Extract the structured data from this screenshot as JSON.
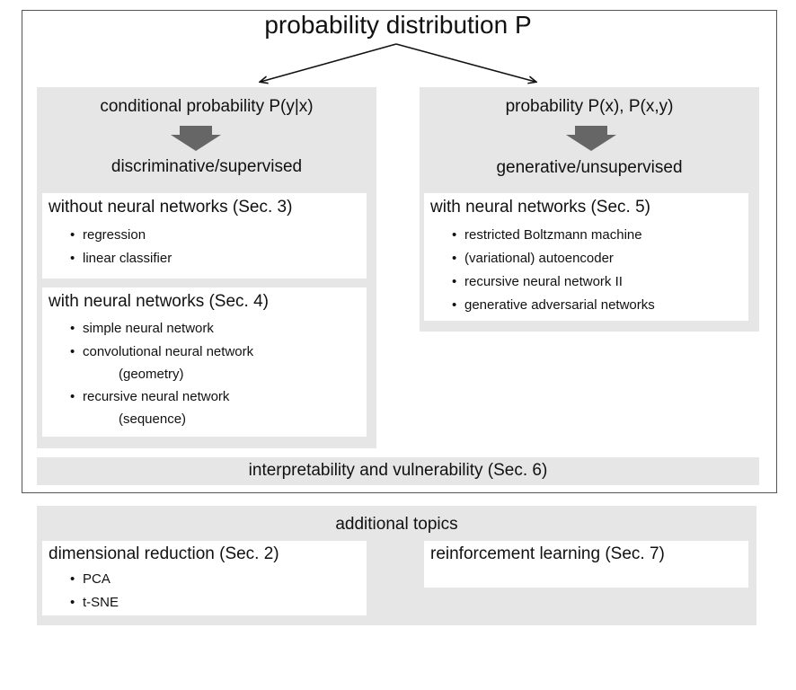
{
  "title": "probability distribution P",
  "left": {
    "header": "conditional probability P(y|x)",
    "subheader": "discriminative/supervised",
    "box1": {
      "title": "without neural networks (Sec. 3)",
      "items": [
        "regression",
        "linear classifier"
      ]
    },
    "box2": {
      "title": "with neural networks (Sec. 4)",
      "items": [
        {
          "label": "simple neural network",
          "note": ""
        },
        {
          "label": "convolutional neural network",
          "note": "(geometry)"
        },
        {
          "label": "recursive neural network",
          "note": "(sequence)"
        }
      ]
    }
  },
  "right": {
    "header": "probability P(x), P(x,y)",
    "subheader": "generative/unsupervised",
    "box": {
      "title": "with neural networks (Sec. 5)",
      "items": [
        "restricted Boltzmann machine",
        "(variational) autoencoder",
        "recursive neural network II",
        "generative adversarial networks"
      ]
    }
  },
  "interpretability": "interpretability and vulnerability (Sec. 6)",
  "additional": {
    "title": "additional topics",
    "dimred": {
      "title": "dimensional reduction (Sec. 2)",
      "items": [
        "PCA",
        "t-SNE"
      ]
    },
    "rl": {
      "title": "reinforcement learning (Sec. 7)"
    }
  }
}
